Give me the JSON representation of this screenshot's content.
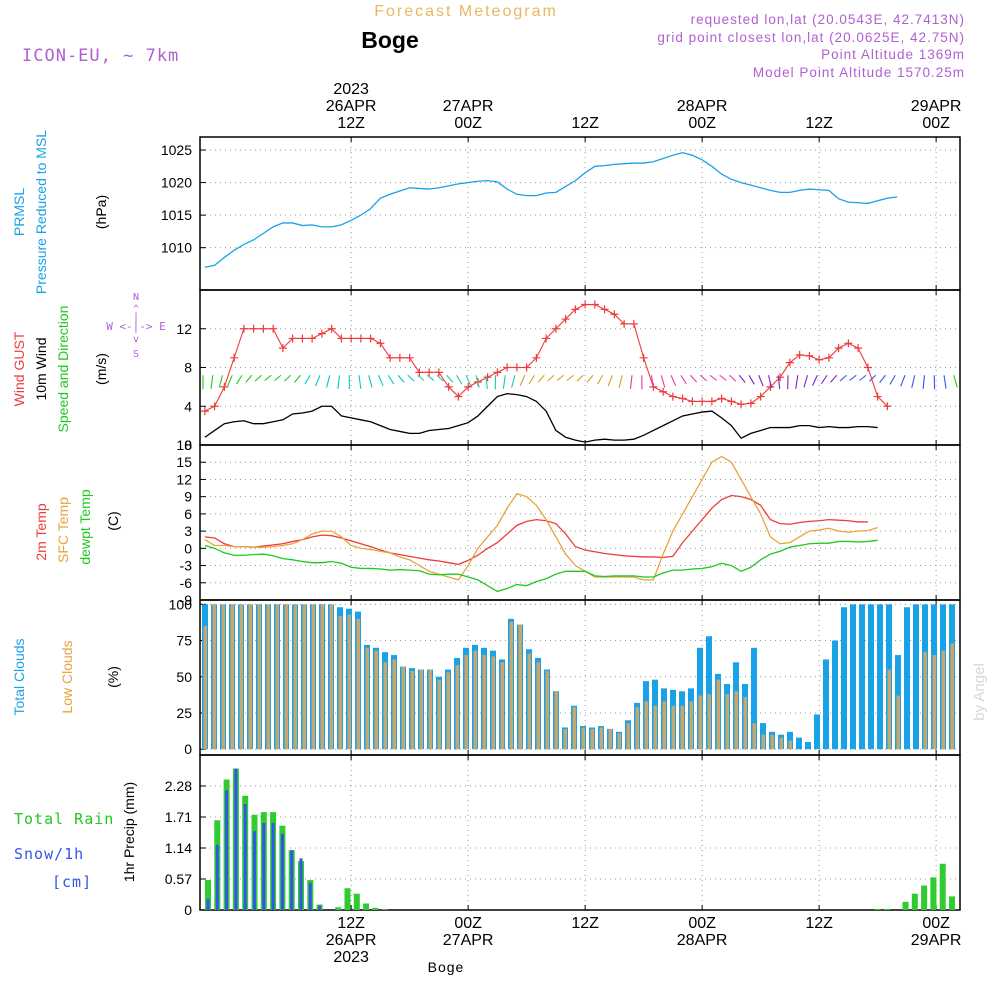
{
  "header": {
    "title": "Forecast Meteogram",
    "location": "Boge",
    "model": "ICON-EU, ~ 7km",
    "requested": "requested lon,lat (20.0543E, 42.7413N)",
    "grid_point": "grid point closest lon,lat (20.0625E, 42.75N)",
    "point_altitude": "Point Altitude 1369m",
    "model_altitude": "Model Point Altitude 1570.25m",
    "footer_location": "Boge",
    "credit": "by Angel"
  },
  "colors": {
    "pressure": "#1aa2e8",
    "gust": "#ef3b3b",
    "wind": "#000000",
    "temp2m": "#ef3b3b",
    "sfc": "#e8a33a",
    "dewpt": "#1fc81f",
    "total_clouds": "#1aa2e8",
    "low_clouds": "#c9a66b",
    "rain": "#2ecc2e",
    "snow": "#3355ee",
    "title_label": "#e8b860",
    "info": "#b060d0"
  },
  "time_axis": {
    "top": [
      {
        "t": 15,
        "lines": [
          "2023",
          "26APR",
          "12Z"
        ]
      },
      {
        "t": 27,
        "lines": [
          "27APR",
          "00Z"
        ]
      },
      {
        "t": 39,
        "lines": [
          "12Z"
        ]
      },
      {
        "t": 51,
        "lines": [
          "28APR",
          "00Z"
        ]
      },
      {
        "t": 63,
        "lines": [
          "12Z"
        ]
      },
      {
        "t": 75,
        "lines": [
          "29APR",
          "00Z"
        ]
      }
    ],
    "bottom": [
      {
        "t": 15,
        "lines": [
          "12Z",
          "26APR",
          "2023"
        ]
      },
      {
        "t": 27,
        "lines": [
          "00Z",
          "27APR"
        ]
      },
      {
        "t": 39,
        "lines": [
          "12Z"
        ]
      },
      {
        "t": 51,
        "lines": [
          "00Z",
          "28APR"
        ]
      },
      {
        "t": 63,
        "lines": [
          "12Z"
        ]
      },
      {
        "t": 75,
        "lines": [
          "00Z",
          "29APR"
        ]
      }
    ]
  },
  "chart_data": [
    {
      "type": "line",
      "panel": "pressure",
      "ylabel_lines": [
        "PRMSL",
        "Pressure Reduced to MSL"
      ],
      "unit": "(hPa)",
      "ylim": [
        1003.5,
        1027
      ],
      "yticks": [
        1010,
        1015,
        1020,
        1025
      ],
      "series": [
        {
          "values": [
            1007,
            1007.3,
            1008.5,
            1009.6,
            1010.5,
            1011.2,
            1012.2,
            1013.2,
            1013.8,
            1013.8,
            1013.4,
            1013.5,
            1013.2,
            1013.2,
            1013.5,
            1014.2,
            1015,
            1016,
            1017.6,
            1018.2,
            1018.7,
            1019.2,
            1019.1,
            1019,
            1019.2,
            1019.5,
            1019.8,
            1020,
            1020.2,
            1020.3,
            1020.1,
            1019,
            1018.2,
            1018,
            1018,
            1018.4,
            1018.5,
            1019.4,
            1020.3,
            1021.5,
            1022.5,
            1022.6,
            1022.8,
            1022.9,
            1023,
            1023,
            1023.2,
            1023.7,
            1024.2,
            1024.6,
            1024.2,
            1023.5,
            1022.5,
            1021.3,
            1020.5,
            1020,
            1019.6,
            1019.2,
            1018.8,
            1018.5,
            1018.5,
            1018.8,
            1019,
            1018.9,
            1018.8,
            1017.5,
            1017,
            1016.9,
            1016.8,
            1017.2,
            1017.6,
            1017.8
          ]
        }
      ]
    },
    {
      "type": "line",
      "panel": "wind",
      "ylabel_lines": [
        "Wind GUST",
        "10m Wind",
        "Speed and Direction"
      ],
      "unit": "(m/s)",
      "compass": "W <-|-> E",
      "ylim": [
        0,
        16
      ],
      "yticks": [
        0,
        4,
        8,
        12
      ],
      "series": [
        {
          "name": "Wind GUST",
          "values": [
            3.5,
            4,
            6,
            9,
            12,
            12,
            12,
            12,
            10,
            11,
            11,
            11,
            11.5,
            12,
            11,
            11,
            11,
            11,
            10.5,
            9,
            9,
            9,
            7.5,
            7.5,
            7.5,
            6,
            5,
            6,
            6.5,
            7,
            7.5,
            8,
            8,
            8,
            9,
            11,
            12,
            13,
            14,
            14.5,
            14.5,
            14,
            13.5,
            12.5,
            12.5,
            9,
            6,
            5.5,
            5,
            4.8,
            4.5,
            4.5,
            4.5,
            4.8,
            4.5,
            4.2,
            4.3,
            5,
            6,
            7,
            8.5,
            9.3,
            9.2,
            8.8,
            9,
            10,
            10.5,
            10,
            8,
            5,
            4
          ]
        },
        {
          "name": "10m Wind",
          "values": [
            0.8,
            1.5,
            2.2,
            2.4,
            2.5,
            2.2,
            2.2,
            2.4,
            2.6,
            3.2,
            3.3,
            3.5,
            4,
            4,
            3,
            2.8,
            2.6,
            2.4,
            2,
            1.6,
            1.4,
            1.2,
            1.2,
            1.5,
            1.6,
            1.7,
            2,
            2.3,
            3,
            4,
            5,
            5.3,
            5.2,
            5,
            4.5,
            3.5,
            1.5,
            0.8,
            0.5,
            0.3,
            0.5,
            0.6,
            0.5,
            0.5,
            0.6,
            1,
            1.5,
            2,
            2.5,
            3,
            3.2,
            3.4,
            3.5,
            2.8,
            2,
            0.7,
            1.2,
            1.5,
            1.8,
            1.8,
            1.8,
            2,
            2,
            1.8,
            1.9,
            1.8,
            1.8,
            1.9,
            1.9,
            1.8
          ]
        }
      ]
    },
    {
      "type": "line",
      "panel": "temperature",
      "ylabel_lines": [
        "2m Temp",
        "SFC Temp",
        "dewpt Temp"
      ],
      "unit": "(C)",
      "ylim": [
        -9,
        18
      ],
      "yticks": [
        -9,
        -6,
        -3,
        0,
        3,
        6,
        9,
        12,
        15,
        18
      ],
      "series": [
        {
          "name": "2m Temp",
          "values": [
            2,
            1.8,
            0.8,
            0.3,
            0.3,
            0.2,
            0.4,
            0.6,
            0.8,
            1.2,
            1.5,
            2,
            2.3,
            2.2,
            1.8,
            1.3,
            0.8,
            0.3,
            -0.3,
            -0.8,
            -1.1,
            -1.4,
            -1.7,
            -2,
            -2.2,
            -2.5,
            -2.8,
            -2.1,
            -1.2,
            0,
            1,
            2.5,
            4,
            4.7,
            5,
            4.8,
            4.3,
            2.5,
            0.3,
            -0.3,
            -0.6,
            -0.9,
            -1.1,
            -1.3,
            -1.4,
            -1.5,
            -1.5,
            -1.6,
            -1.4,
            1,
            3,
            5,
            7,
            8.5,
            9.2,
            9,
            8.5,
            7.5,
            5,
            4.3,
            4.2,
            4.5,
            4.7,
            4.8,
            5,
            4.9,
            4.8,
            4.6,
            4.6
          ]
        },
        {
          "name": "SFC Temp",
          "values": [
            1.5,
            0.5,
            0.5,
            0.3,
            0.3,
            0.2,
            0.2,
            0.3,
            0.5,
            0.8,
            1.5,
            2.5,
            3,
            3,
            2,
            0.5,
            0,
            -0.2,
            -0.5,
            -0.8,
            -1.5,
            -2,
            -3,
            -4,
            -4.5,
            -5,
            -5.5,
            -3,
            0,
            2,
            4,
            7,
            9.5,
            9,
            7.5,
            5,
            2,
            -1,
            -3,
            -4,
            -5,
            -5,
            -5,
            -5,
            -5,
            -5.5,
            -5.5,
            -1,
            3,
            6,
            9,
            12,
            15,
            16,
            15,
            12,
            9,
            6,
            2,
            0.8,
            1,
            2,
            3,
            3.2,
            3.5,
            3,
            2.8,
            3,
            3.1,
            3.6
          ]
        },
        {
          "name": "dewpt Temp",
          "values": [
            0.5,
            0,
            -0.8,
            -1.2,
            -1.2,
            -1.1,
            -1,
            -1.3,
            -1.8,
            -2,
            -2.3,
            -2.5,
            -2.5,
            -2.3,
            -2.6,
            -3.3,
            -3.5,
            -3.5,
            -3.6,
            -3.8,
            -3.7,
            -3.8,
            -3.9,
            -4.5,
            -4.6,
            -4.5,
            -4.5,
            -5,
            -5.5,
            -6.5,
            -7.5,
            -7,
            -6.3,
            -6.5,
            -5.8,
            -5.3,
            -4.5,
            -4,
            -4,
            -4,
            -4.8,
            -4.9,
            -4.8,
            -4.8,
            -4.8,
            -5,
            -5,
            -4.3,
            -3.8,
            -3.8,
            -3.6,
            -3.5,
            -3.2,
            -2.6,
            -3,
            -4,
            -3.3,
            -2,
            -1,
            -0.5,
            0.2,
            0.5,
            0.8,
            0.9,
            0.9,
            1.2,
            1.2,
            1.1,
            1.2,
            1.4
          ]
        }
      ]
    },
    {
      "type": "bar",
      "panel": "clouds",
      "ylabel_lines": [
        "Total Clouds",
        "Low Clouds"
      ],
      "unit": "(%)",
      "ylim": [
        -4,
        103
      ],
      "yticks": [
        0,
        25,
        50,
        75,
        100
      ],
      "series": [
        {
          "name": "Total Clouds",
          "values": [
            100,
            100,
            100,
            100,
            100,
            100,
            100,
            100,
            100,
            100,
            100,
            100,
            100,
            100,
            100,
            98,
            97,
            95,
            72,
            70,
            67,
            65,
            57,
            56,
            55,
            55,
            50,
            55,
            63,
            70,
            72,
            70,
            68,
            62,
            90,
            86,
            69,
            63,
            55,
            40,
            15,
            30,
            16,
            15,
            16,
            14,
            12,
            20,
            32,
            47,
            48,
            42,
            41,
            40,
            42,
            70,
            78,
            52,
            45,
            60,
            45,
            70,
            18,
            12,
            10,
            12,
            8,
            5,
            24,
            62,
            75,
            98,
            100,
            100,
            100,
            100,
            100,
            65,
            98,
            100,
            100,
            100,
            100,
            100,
            100,
            100
          ]
        },
        {
          "name": "Low Clouds",
          "values": [
            85,
            100,
            100,
            100,
            100,
            100,
            100,
            100,
            100,
            100,
            100,
            100,
            100,
            100,
            100,
            92,
            93,
            90,
            70,
            68,
            60,
            62,
            57,
            54,
            55,
            55,
            48,
            53,
            58,
            65,
            68,
            65,
            64,
            60,
            88,
            86,
            66,
            60,
            54,
            40,
            14,
            29,
            15,
            14,
            15,
            14,
            11,
            18,
            29,
            33,
            30,
            33,
            30,
            30,
            33,
            37,
            38,
            48,
            38,
            40,
            36,
            18,
            10,
            10,
            8,
            6,
            0,
            0,
            0,
            0,
            0,
            0,
            0,
            0,
            0,
            0,
            55,
            37,
            0,
            0,
            67,
            65,
            68,
            73,
            90,
            85
          ]
        }
      ]
    },
    {
      "type": "bar",
      "panel": "precip",
      "ylabel_lines": [
        "1hr Precip (mm)"
      ],
      "side_labels": [
        "Total Rain",
        "Snow/1h",
        "[cm]"
      ],
      "ylim": [
        0,
        2.85
      ],
      "yticks": [
        0,
        0.57,
        1.14,
        1.71,
        2.28
      ],
      "ytick_labels": [
        "0",
        "0.57",
        "1.14",
        "1.71",
        "2.28"
      ],
      "series": [
        {
          "name": "Total Rain",
          "values": [
            0.55,
            1.65,
            2.4,
            2.6,
            2.1,
            1.75,
            1.8,
            1.8,
            1.55,
            1.1,
            0.9,
            0.55,
            0.1,
            0,
            0.05,
            0.4,
            0.3,
            0.12,
            0.04,
            0.01,
            0,
            0,
            0,
            0,
            0,
            0,
            0,
            0,
            0,
            0,
            0,
            0,
            0,
            0,
            0,
            0,
            0,
            0,
            0,
            0,
            0,
            0,
            0,
            0,
            0,
            0,
            0,
            0,
            0,
            0,
            0,
            0,
            0,
            0,
            0,
            0,
            0,
            0,
            0,
            0,
            0,
            0,
            0,
            0,
            0,
            0,
            0,
            0,
            0,
            0,
            0,
            0,
            0.02,
            0.02,
            0,
            0.15,
            0.3,
            0.45,
            0.6,
            0.85,
            0.25
          ]
        },
        {
          "name": "Snow/1h",
          "values": [
            0.2,
            1.2,
            2.2,
            2.6,
            1.95,
            1.45,
            1.6,
            1.6,
            1.4,
            1.1,
            0.95,
            0.5,
            0.08,
            0,
            0,
            0,
            0,
            0,
            0,
            0,
            0,
            0,
            0,
            0,
            0,
            0,
            0,
            0,
            0,
            0,
            0,
            0,
            0,
            0,
            0,
            0,
            0,
            0,
            0,
            0,
            0,
            0,
            0,
            0,
            0,
            0,
            0,
            0,
            0,
            0,
            0,
            0,
            0,
            0,
            0,
            0,
            0,
            0,
            0,
            0,
            0,
            0,
            0,
            0,
            0,
            0,
            0,
            0,
            0,
            0,
            0,
            0,
            0,
            0,
            0,
            0,
            0,
            0,
            0,
            0,
            0
          ]
        }
      ]
    }
  ]
}
